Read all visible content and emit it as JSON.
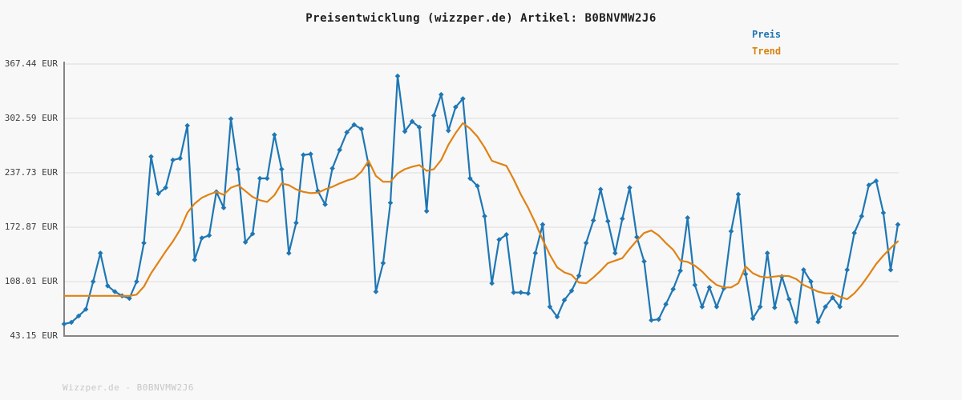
{
  "title": "Preisentwicklung (wizzper.de) Artikel: B0BNVMW2J6",
  "footer": "Wizzper.de - B0BNVMW2J6",
  "legend": [
    {
      "label": "Preis",
      "color": "#1f77b4"
    },
    {
      "label": "Trend",
      "color": "#d9830f"
    }
  ],
  "colors": {
    "background": "#f8f8f8",
    "grid": "#e2e2e2",
    "axis": "#858585",
    "price_line": "#1f77b4",
    "trend_line": "#e08214",
    "title_text": "#1f1f1f",
    "tick_text": "#3c3c3c",
    "footer_text": "#c7c7c7"
  },
  "chart_data": {
    "type": "line",
    "title": "Preisentwicklung (wizzper.de) Artikel: B0BNVMW2J6",
    "currency": "EUR",
    "grid": true,
    "legend_position": "top-right",
    "ylim": [
      43.15,
      367.44
    ],
    "y_ticks": [
      367.44,
      302.59,
      237.73,
      172.87,
      108.01,
      43.15
    ],
    "y_tick_labels": [
      "367.44 EUR",
      "302.59 EUR",
      "237.73 EUR",
      "172.87 EUR",
      "108.01 EUR",
      "43.15 EUR"
    ],
    "x_tick_labels": [],
    "series": [
      {
        "name": "Preis",
        "color": "#1f77b4",
        "marker": "diamond",
        "values": [
          57.5,
          59.5,
          67,
          75,
          108,
          142,
          103,
          96,
          91,
          88,
          108,
          154,
          257,
          213,
          220,
          253,
          255,
          294,
          134,
          160,
          163,
          215,
          196,
          302,
          242,
          155,
          165,
          231,
          231,
          283,
          242,
          142,
          178,
          259,
          260,
          216,
          200,
          243,
          265,
          286,
          295,
          290,
          247,
          96,
          130,
          202,
          353,
          287,
          299,
          292,
          192,
          306,
          331,
          288,
          316,
          326,
          231,
          222,
          186,
          106,
          158,
          164,
          95,
          95,
          94,
          142,
          176,
          78,
          66,
          86,
          97,
          115,
          154,
          181,
          218,
          180,
          142,
          183,
          220,
          161,
          132,
          62,
          63,
          81,
          99,
          121,
          184,
          104,
          78,
          101,
          78,
          100,
          168,
          212,
          117,
          64,
          78,
          142,
          77,
          114,
          87,
          60,
          122,
          108,
          60,
          78,
          89,
          78,
          122,
          166,
          186,
          223,
          228,
          190,
          122,
          176
        ]
      },
      {
        "name": "Trend",
        "color": "#e08214",
        "marker": "none",
        "values": [
          91,
          91,
          91,
          91,
          91,
          91,
          91,
          91,
          91,
          91,
          92.5,
          102,
          118,
          131,
          144,
          156,
          170,
          190,
          201,
          208,
          212,
          215,
          211.5,
          220,
          223,
          216,
          209,
          205,
          203,
          211,
          225,
          223,
          218,
          215,
          213.5,
          214,
          218,
          221,
          225,
          228.5,
          231,
          239,
          252,
          234,
          227,
          227,
          237,
          242,
          245,
          247,
          240,
          242,
          253,
          271,
          285,
          297,
          290.5,
          281,
          268,
          252,
          249,
          246,
          230,
          212,
          196,
          178,
          158,
          140,
          125,
          119,
          116,
          107,
          106,
          113,
          121,
          130,
          133,
          136,
          147,
          157,
          166,
          169,
          163,
          154,
          146,
          133,
          131.5,
          127,
          120,
          111,
          104,
          101,
          101,
          106,
          126,
          118,
          114,
          113,
          114,
          115,
          114.5,
          111,
          104,
          100,
          96,
          94,
          94,
          90,
          87,
          94,
          104,
          116,
          129,
          139,
          148,
          156
        ]
      }
    ]
  }
}
